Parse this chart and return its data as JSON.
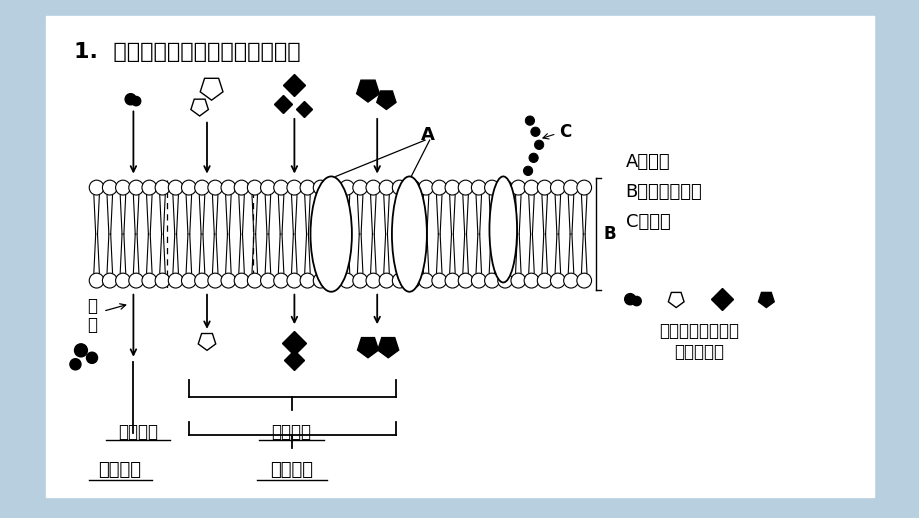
{
  "title": "1.  根据图解确定物质跨膜运输方式",
  "bg_color": "#b8cfe0",
  "panel_bg": "#ffffff",
  "label_A": "A蛋白质",
  "label_B": "B磷脂双分子层",
  "label_C": "C多糖链",
  "legend_text1": "分别代表各种物质",
  "legend_text2": "分子或离子",
  "text_free": "自由扩散",
  "text_assisted": "协助扩散",
  "text_active": "主动运输",
  "text_passive": "被动运输",
  "text_energy": "能\n量"
}
